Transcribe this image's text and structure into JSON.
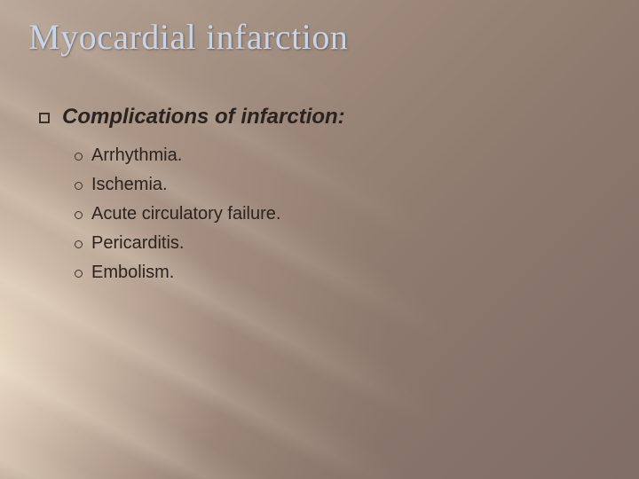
{
  "slide": {
    "title": "Myocardial infarction",
    "heading": "Complications of infarction:",
    "items": [
      "Arrhythmia.",
      "Ischemia.",
      "Acute circulatory failure.",
      "Pericarditis.",
      "Embolism."
    ]
  },
  "style": {
    "title_color": "#c8d4e8",
    "title_fontsize": 40,
    "heading_fontsize": 24,
    "item_fontsize": 20,
    "text_color": "#2a2320",
    "background_gradient_start": "#b8a698",
    "background_gradient_end": "#806d63",
    "light_ray_color": "rgba(255,248,225,0.18)",
    "bullet_square_border": "#3b322c",
    "bullet_circle_border": "#3b322c"
  }
}
